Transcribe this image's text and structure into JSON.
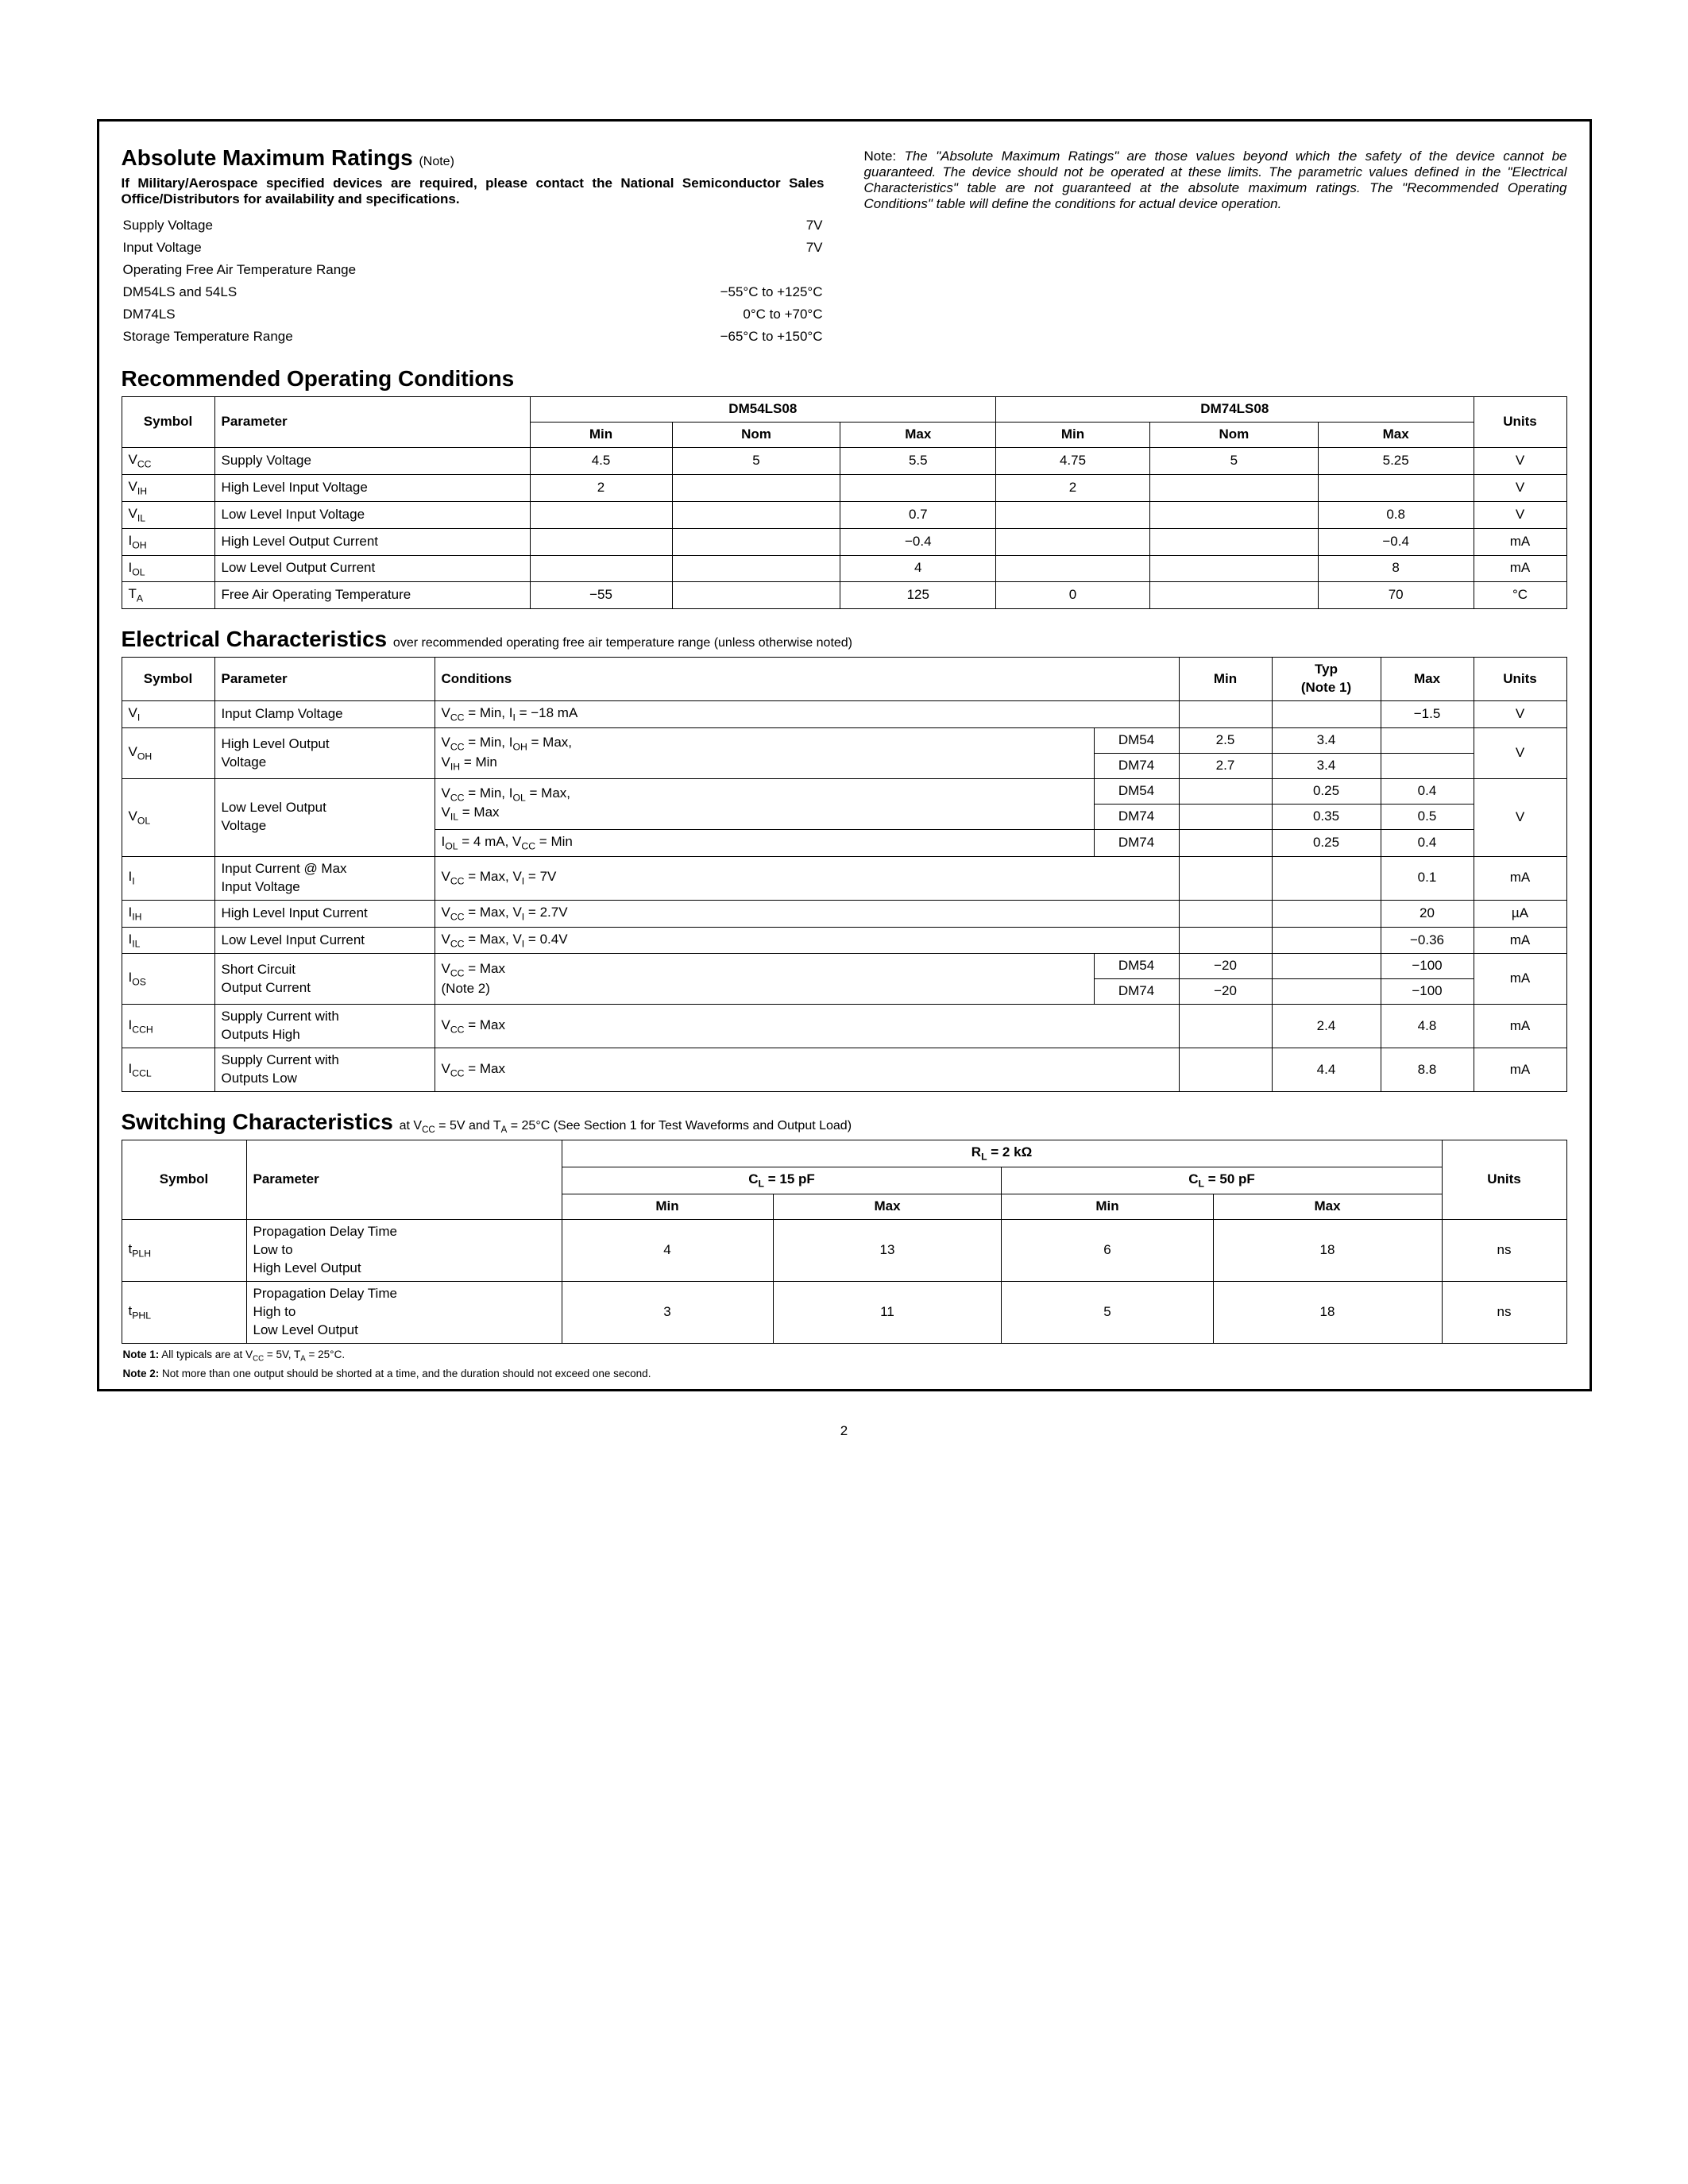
{
  "amr": {
    "heading": "Absolute Maximum Ratings",
    "note_suffix": "(Note)",
    "military_line": "If Military/Aerospace specified devices are required, please contact the National Semiconductor Sales Office/Distributors for availability and specifications.",
    "rows": [
      {
        "label": "Supply Voltage",
        "value": "7V"
      },
      {
        "label": "Input Voltage",
        "value": "7V"
      },
      {
        "label": "Operating Free Air Temperature Range",
        "value": ""
      },
      {
        "label": "DM54LS and 54LS",
        "value": "−55°C to +125°C",
        "indent": true
      },
      {
        "label": "DM74LS",
        "value": "0°C to +70°C",
        "indent": true
      },
      {
        "label": "Storage Temperature Range",
        "value": "−65°C to +150°C"
      }
    ],
    "note_right": "Note: The \"Absolute Maximum Ratings\" are those values beyond which the safety of the device cannot be guaranteed. The device should not be operated at these limits. The parametric values defined in the \"Electrical Characteristics\" table are not guaranteed at the absolute maximum ratings. The \"Recommended Operating Conditions\" table will define the conditions for actual device operation."
  },
  "roc": {
    "heading": "Recommended Operating Conditions",
    "group1": "DM54LS08",
    "group2": "DM74LS08",
    "cols": [
      "Symbol",
      "Parameter",
      "Min",
      "Nom",
      "Max",
      "Min",
      "Nom",
      "Max",
      "Units"
    ],
    "rows": [
      {
        "sym": "V",
        "sub": "CC",
        "param": "Supply Voltage",
        "v": [
          "4.5",
          "5",
          "5.5",
          "4.75",
          "5",
          "5.25",
          "V"
        ]
      },
      {
        "sym": "V",
        "sub": "IH",
        "param": "High Level Input Voltage",
        "v": [
          "2",
          "",
          "",
          "2",
          "",
          "",
          "V"
        ]
      },
      {
        "sym": "V",
        "sub": "IL",
        "param": "Low Level Input Voltage",
        "v": [
          "",
          "",
          "0.7",
          "",
          "",
          "0.8",
          "V"
        ]
      },
      {
        "sym": "I",
        "sub": "OH",
        "param": "High Level Output Current",
        "v": [
          "",
          "",
          "−0.4",
          "",
          "",
          "−0.4",
          "mA"
        ]
      },
      {
        "sym": "I",
        "sub": "OL",
        "param": "Low Level Output Current",
        "v": [
          "",
          "",
          "4",
          "",
          "",
          "8",
          "mA"
        ]
      },
      {
        "sym": "T",
        "sub": "A",
        "param": "Free Air Operating Temperature",
        "v": [
          "−55",
          "",
          "125",
          "0",
          "",
          "70",
          "°C"
        ]
      }
    ]
  },
  "ec": {
    "heading": "Electrical Characteristics",
    "subtitle": "over recommended operating free air temperature range (unless otherwise noted)",
    "cols": [
      "Symbol",
      "Parameter",
      "Conditions",
      "Min",
      "Typ (Note 1)",
      "Max",
      "Units"
    ]
  },
  "sc": {
    "heading": "Switching Characteristics",
    "subtitle_prefix": "at V",
    "subtitle_mid": " = 5V and T",
    "subtitle_suffix": " = 25°C (See Section 1 for Test Waveforms and Output Load)",
    "rl": "R",
    "rl_val": " = 2 kΩ",
    "cl1": "C",
    "cl1_val": " = 15 pF",
    "cl2": "C",
    "cl2_val": " = 50 pF",
    "cols": [
      "Symbol",
      "Parameter",
      "Min",
      "Max",
      "Min",
      "Max",
      "Units"
    ],
    "rows": [
      {
        "sym": "t",
        "sub": "PLH",
        "param": "Propagation Delay Time Low to High Level Output",
        "v": [
          "4",
          "13",
          "6",
          "18",
          "ns"
        ]
      },
      {
        "sym": "t",
        "sub": "PHL",
        "param": "Propagation Delay Time High to Low Level Output",
        "v": [
          "3",
          "11",
          "5",
          "18",
          "ns"
        ]
      }
    ]
  },
  "notes": {
    "n1_label": "Note 1:",
    "n1": " All typicals are at V",
    "n1_mid": " = 5V, T",
    "n1_end": " = 25°C.",
    "n2_label": "Note 2:",
    "n2": " Not more than one output should be shorted at a time, and the duration should not exceed one second."
  },
  "page_number": "2"
}
